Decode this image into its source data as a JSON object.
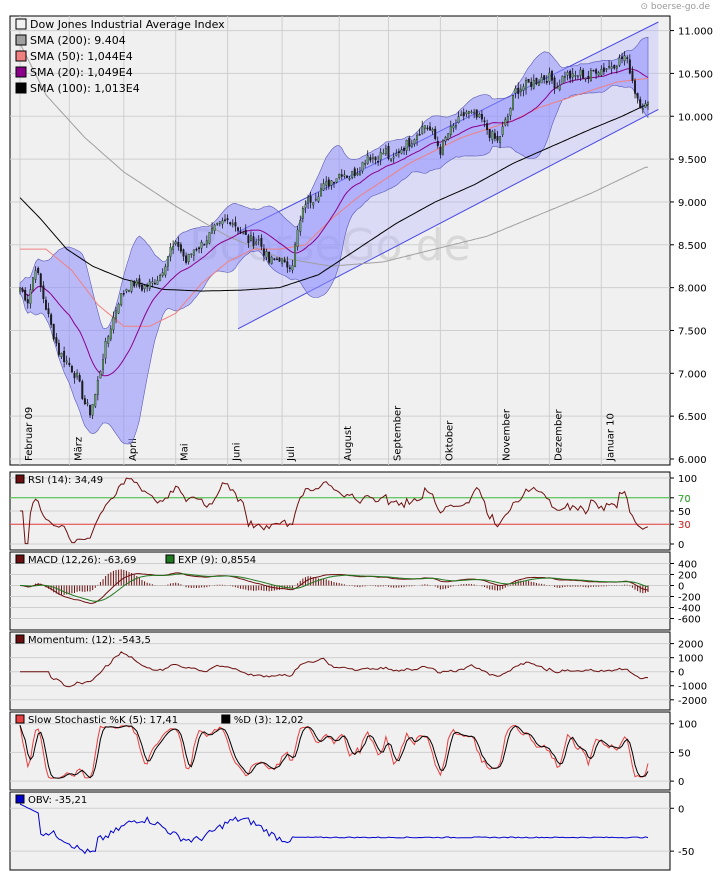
{
  "source": "boerse-go.de",
  "watermark": "BoerseGo.de",
  "colors": {
    "panel_bg": "#f0f0f0",
    "grid": "#cfcfcf",
    "bollinger_fill": "#8c8cff",
    "channel_fill": "#b4b4ff",
    "channel_line": "#4646e6",
    "candle_up": "#6aa66a",
    "candle_down": "#1e1e1e",
    "sma200": "#a0a0a0",
    "sma50": "#f08080",
    "sma20": "#8b008b",
    "sma100": "#000000",
    "rsi": "#6e0f0f",
    "macd": "#6e0f0f",
    "exp": "#1f7a1f",
    "momentum": "#6e0f0f",
    "stoch_k": "#e84040",
    "stoch_d": "#000000",
    "obv": "#0000cc"
  },
  "chart_data": [
    {
      "type": "candlestick",
      "title": "Dow Jones Industrial Average Index",
      "legend": [
        {
          "name": "Dow Jones Industrial Average Index",
          "color": "#f0f0f0"
        },
        {
          "name": "SMA (200): 9.404",
          "color": "#a0a0a0"
        },
        {
          "name": "SMA (50): 1,044E4",
          "color": "#f08080"
        },
        {
          "name": "SMA (20): 1,049E4",
          "color": "#8b008b"
        },
        {
          "name": "SMA (100): 1,013E4",
          "color": "#000000"
        }
      ],
      "legend_position": "top-left",
      "ylim": [
        6000,
        11100
      ],
      "yticks": [
        6000,
        6500,
        7000,
        7500,
        8000,
        8500,
        9000,
        9500,
        10000,
        10500,
        11000
      ],
      "ytick_labels": [
        "6.000",
        "6.500",
        "7.000",
        "7.500",
        "8.000",
        "8.500",
        "9.000",
        "9.500",
        "10.000",
        "10.500",
        "11.000"
      ],
      "x_months": [
        "Februar 09",
        "März",
        "April",
        "Mai",
        "Juni",
        "Juli",
        "August",
        "September",
        "Oktober",
        "November",
        "Dezember",
        "Januar 10"
      ],
      "x_range": [
        0,
        242
      ],
      "month_starts": [
        0,
        19,
        40,
        60,
        80,
        101,
        123,
        142,
        162,
        184,
        204,
        224
      ],
      "close_keyframes": [
        [
          0,
          8000
        ],
        [
          3,
          7850
        ],
        [
          6,
          8250
        ],
        [
          9,
          7880
        ],
        [
          12,
          7550
        ],
        [
          15,
          7250
        ],
        [
          19,
          7100
        ],
        [
          22,
          6950
        ],
        [
          25,
          6650
        ],
        [
          27,
          6550
        ],
        [
          29,
          6750
        ],
        [
          32,
          7200
        ],
        [
          35,
          7550
        ],
        [
          38,
          7850
        ],
        [
          41,
          8000
        ],
        [
          44,
          8050
        ],
        [
          47,
          8000
        ],
        [
          51,
          8050
        ],
        [
          54,
          8150
        ],
        [
          58,
          8450
        ],
        [
          61,
          8500
        ],
        [
          64,
          8300
        ],
        [
          67,
          8450
        ],
        [
          70,
          8500
        ],
        [
          74,
          8650
        ],
        [
          78,
          8750
        ],
        [
          81,
          8800
        ],
        [
          84,
          8700
        ],
        [
          88,
          8550
        ],
        [
          92,
          8550
        ],
        [
          96,
          8300
        ],
        [
          100,
          8350
        ],
        [
          102,
          8250
        ],
        [
          105,
          8300
        ],
        [
          107,
          8650
        ],
        [
          110,
          9000
        ],
        [
          113,
          9050
        ],
        [
          116,
          9150
        ],
        [
          120,
          9250
        ],
        [
          124,
          9350
        ],
        [
          127,
          9300
        ],
        [
          131,
          9400
        ],
        [
          134,
          9550
        ],
        [
          137,
          9500
        ],
        [
          141,
          9600
        ],
        [
          143,
          9450
        ],
        [
          146,
          9600
        ],
        [
          150,
          9700
        ],
        [
          153,
          9800
        ],
        [
          156,
          9900
        ],
        [
          159,
          9800
        ],
        [
          162,
          9600
        ],
        [
          165,
          9800
        ],
        [
          168,
          9900
        ],
        [
          172,
          10050
        ],
        [
          175,
          10000
        ],
        [
          178,
          9950
        ],
        [
          181,
          9800
        ],
        [
          184,
          9700
        ],
        [
          188,
          10000
        ],
        [
          191,
          10300
        ],
        [
          194,
          10350
        ],
        [
          198,
          10400
        ],
        [
          201,
          10450
        ],
        [
          204,
          10450
        ],
        [
          207,
          10350
        ],
        [
          210,
          10500
        ],
        [
          213,
          10450
        ],
        [
          216,
          10500
        ],
        [
          219,
          10450
        ],
        [
          222,
          10550
        ],
        [
          225,
          10550
        ],
        [
          228,
          10600
        ],
        [
          231,
          10650
        ],
        [
          233,
          10700
        ],
        [
          235,
          10550
        ],
        [
          237,
          10300
        ],
        [
          239,
          10150
        ],
        [
          241,
          10120
        ]
      ],
      "sma200_start": [
        0,
        10850
      ],
      "sma200_keyframes": [
        [
          0,
          10850
        ],
        [
          10,
          10250
        ],
        [
          25,
          9750
        ],
        [
          40,
          9350
        ],
        [
          60,
          8950
        ],
        [
          80,
          8600
        ],
        [
          100,
          8350
        ],
        [
          120,
          8250
        ],
        [
          140,
          8300
        ],
        [
          160,
          8450
        ],
        [
          180,
          8600
        ],
        [
          200,
          8850
        ],
        [
          220,
          9100
        ],
        [
          241,
          9404
        ]
      ],
      "sma50_keyframes": [
        [
          0,
          8450
        ],
        [
          10,
          8450
        ],
        [
          20,
          8200
        ],
        [
          30,
          7800
        ],
        [
          40,
          7550
        ],
        [
          50,
          7550
        ],
        [
          60,
          7700
        ],
        [
          70,
          8050
        ],
        [
          80,
          8300
        ],
        [
          90,
          8450
        ],
        [
          100,
          8450
        ],
        [
          110,
          8500
        ],
        [
          120,
          8800
        ],
        [
          130,
          9050
        ],
        [
          140,
          9250
        ],
        [
          150,
          9450
        ],
        [
          160,
          9600
        ],
        [
          170,
          9750
        ],
        [
          180,
          9850
        ],
        [
          190,
          9950
        ],
        [
          200,
          10100
        ],
        [
          210,
          10200
        ],
        [
          220,
          10300
        ],
        [
          230,
          10400
        ],
        [
          241,
          10440
        ]
      ],
      "sma100_keyframes": [
        [
          0,
          9050
        ],
        [
          8,
          8800
        ],
        [
          18,
          8450
        ],
        [
          28,
          8250
        ],
        [
          40,
          8100
        ],
        [
          55,
          7980
        ],
        [
          70,
          7960
        ],
        [
          85,
          7970
        ],
        [
          100,
          8000
        ],
        [
          115,
          8150
        ],
        [
          130,
          8450
        ],
        [
          145,
          8750
        ],
        [
          160,
          9000
        ],
        [
          175,
          9200
        ],
        [
          190,
          9450
        ],
        [
          205,
          9650
        ],
        [
          220,
          9850
        ],
        [
          232,
          10000
        ],
        [
          241,
          10130
        ]
      ],
      "channel": {
        "x0": 84,
        "x1": 246,
        "lower0": 7520,
        "lower1": 10080,
        "upper0": 8650,
        "upper1": 11100
      },
      "bb_width": 230,
      "sma_period": 20
    },
    {
      "type": "line",
      "name": "RSI (14): 34,49",
      "ylim": [
        0,
        100
      ],
      "yticks": [
        0,
        30,
        50,
        70,
        100
      ],
      "ytick_labels": [
        "0",
        "30",
        "50",
        "70",
        "100"
      ],
      "reference_lines": [
        {
          "value": 70,
          "label": "70",
          "color": "#3fbf3f"
        },
        {
          "value": 30,
          "label": "30",
          "color": "#e84040"
        }
      ]
    },
    {
      "type": "line",
      "name": "MACD (12,26): -63,69",
      "signal": "EXP (9): 0,8554",
      "ylim": [
        -700,
        500
      ],
      "yticks": [
        400,
        200,
        0,
        -200,
        -400,
        -600
      ],
      "ytick_labels": [
        "400",
        "200",
        "0",
        "-200",
        "-400",
        "-600"
      ]
    },
    {
      "type": "line",
      "name": "Momentum: (12): -543,5",
      "ylim": [
        -2300,
        2400
      ],
      "yticks": [
        2000,
        1000,
        0,
        -1000,
        -2000
      ],
      "ytick_labels": [
        "2000",
        "1000",
        "0",
        "-1000",
        "-2000"
      ]
    },
    {
      "type": "line",
      "name": "Slow Stochastic %K (5): 17,41",
      "signal": "%D (3): 12,02",
      "ylim": [
        -5,
        110
      ],
      "yticks": [
        100,
        50,
        0
      ],
      "ytick_labels": [
        "100",
        "50",
        "0"
      ]
    },
    {
      "type": "line",
      "name": "OBV: -35,21",
      "ylim": [
        -65,
        12
      ],
      "yticks": [
        0,
        -50
      ],
      "ytick_labels": [
        "0",
        "-50"
      ]
    }
  ]
}
